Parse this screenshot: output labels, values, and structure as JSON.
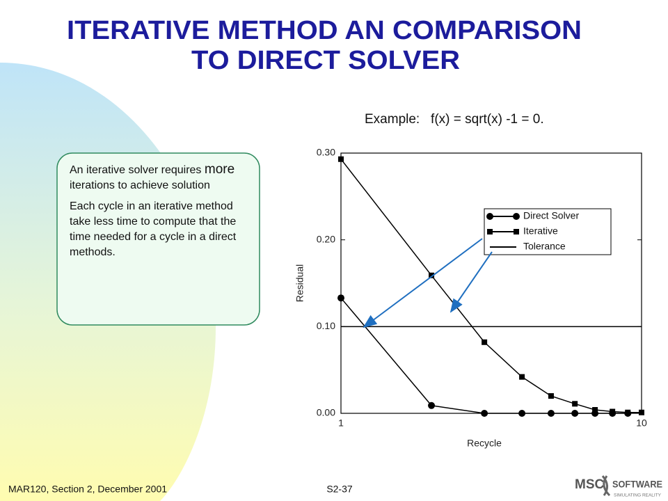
{
  "slide": {
    "title_lines": [
      "ITERATIVE METHOD AN COMPARISON",
      "TO DIRECT SOLVER"
    ],
    "example": "Example:   f(x) = sqrt(x) -1 = 0.",
    "box": {
      "paragraph1": [
        "An iterative solver requires",
        "more",
        "iterations to achieve solution"
      ],
      "paragraph2": "Each cycle in an iterative method take less time to compute that  the time needed for a cycle in a direct methods."
    },
    "footer": {
      "left": "MAR120, Section 2, December 2001",
      "page": "S2-37"
    },
    "logo": {
      "left": "MSC",
      "right": "SOFTWARE",
      "tagline": "SIMULATING REALITY"
    }
  },
  "chart_data": {
    "type": "line",
    "x_label": "Recycle",
    "y_label": "Residual",
    "xlim": [
      1,
      10
    ],
    "xticks": [
      1,
      10
    ],
    "x_log": true,
    "ylim": [
      0,
      0.3
    ],
    "yticks": [
      {
        "value": 0,
        "label": "0.00"
      },
      {
        "value": 0.1,
        "label": "0.10"
      },
      {
        "value": 0.2,
        "label": "0.20"
      },
      {
        "value": 0.3,
        "label": "0.30"
      }
    ],
    "series": [
      {
        "name": "Direct Solver",
        "color": "#000000",
        "marker": "circle",
        "x": [
          1,
          2,
          3,
          4,
          5,
          6,
          7,
          8,
          9
        ],
        "values": [
          0.133,
          0.009,
          0,
          0,
          0,
          0,
          0,
          0,
          0
        ]
      },
      {
        "name": "Iterative",
        "color": "#000000",
        "marker": "square",
        "x": [
          1,
          2,
          3,
          4,
          5,
          6,
          7,
          8,
          9,
          10
        ],
        "values": [
          0.293,
          0.159,
          0.082,
          0.042,
          0.02,
          0.011,
          0.004,
          0.002,
          0.001,
          0.001
        ]
      },
      {
        "name": "Tolerance",
        "color": "#000000",
        "marker": "none",
        "x": [
          1,
          10
        ],
        "values": [
          0.1,
          0.1
        ]
      }
    ]
  }
}
